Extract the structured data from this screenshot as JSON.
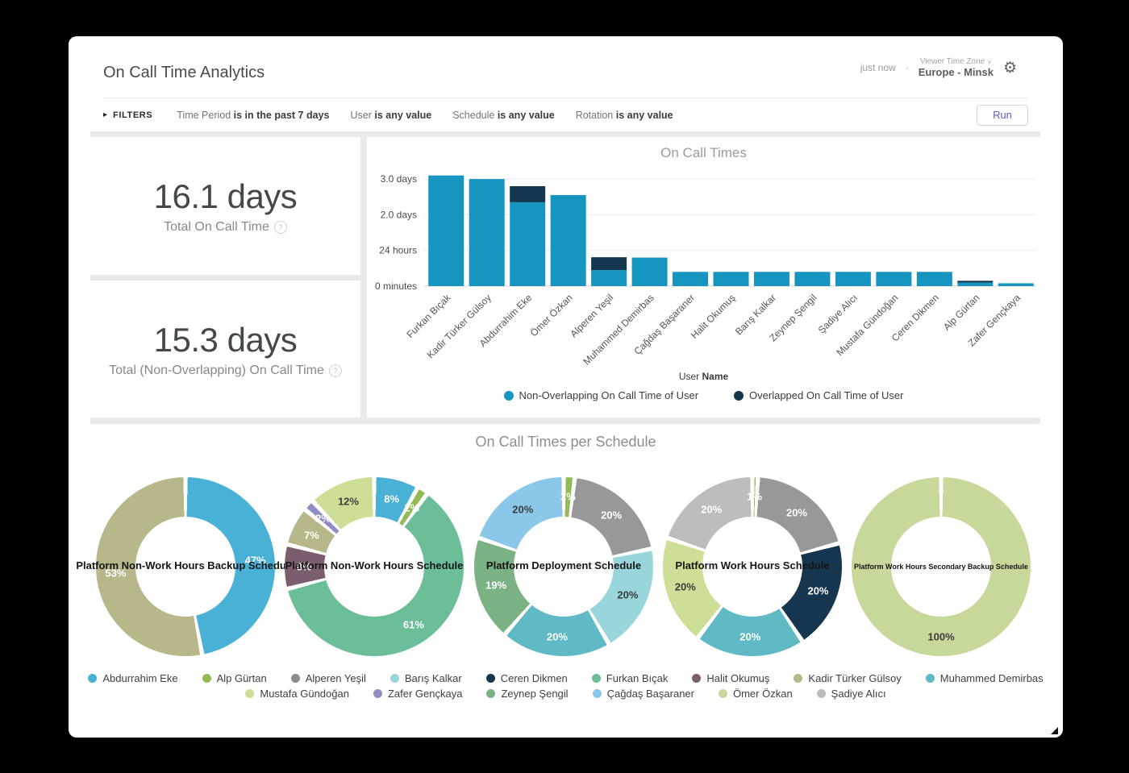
{
  "header": {
    "title": "On Call Time Analytics",
    "updated": "just now",
    "separator": "·",
    "timezone_label": "Viewer Time Zone",
    "timezone_value": "Europe - Minsk"
  },
  "filters": {
    "label": "FILTERS",
    "items": [
      {
        "field": "Time Period",
        "condition": "is in the past 7 days"
      },
      {
        "field": "User",
        "condition": "is any value"
      },
      {
        "field": "Schedule",
        "condition": "is any value"
      },
      {
        "field": "Rotation",
        "condition": "is any value"
      }
    ],
    "run_label": "Run"
  },
  "metrics": [
    {
      "value": "16.1 days",
      "label": "Total On Call Time"
    },
    {
      "value": "15.3 days",
      "label": "Total (Non-Overlapping) On Call Time"
    }
  ],
  "colors": {
    "bar_teal": "#1795C1",
    "bar_navy": "#14374F",
    "grid_line": "#ececec",
    "baseline": "#dcdcdc"
  },
  "chart_data": [
    {
      "type": "bar",
      "title": "On Call Times",
      "stacked": true,
      "unit": "days",
      "ylim": [
        0,
        3.3
      ],
      "xlabel": {
        "prefix": "User ",
        "bold": "Name"
      },
      "y_ticks": [
        {
          "value": 3,
          "label": "3.0 days"
        },
        {
          "value": 2,
          "label": "2.0 days"
        },
        {
          "value": 1,
          "label": "24 hours"
        },
        {
          "value": 0,
          "label": "0 minutes"
        }
      ],
      "categories": [
        "Furkan Bıçak",
        "Kadir Türker Gülsoy",
        "Abdurrahim Eke",
        "Ömer Özkan",
        "Alperen Yeşil",
        "Muhammed Demirbas",
        "Çağdaş Başaraner",
        "Halit Okumuş",
        "Barış Kalkar",
        "Zeynep Şengil",
        "Şadiye Alıcı",
        "Mustafa Gündoğan",
        "Ceren Dikmen",
        "Alp Gürtan",
        "Zafer Gençkaya"
      ],
      "series": [
        {
          "name": "Non-Overlapping On Call Time of User",
          "color": "#1795C1",
          "values": [
            3.1,
            3.0,
            2.35,
            2.55,
            0.45,
            0.8,
            0.4,
            0.4,
            0.4,
            0.4,
            0.4,
            0.4,
            0.4,
            0.1,
            0.08
          ]
        },
        {
          "name": "Overlapped On Call Time of User",
          "color": "#14374F",
          "values": [
            0,
            0,
            0.45,
            0,
            0.36,
            0,
            0,
            0,
            0,
            0,
            0,
            0,
            0,
            0.05,
            0
          ]
        }
      ]
    },
    {
      "type": "pie",
      "title": "On Call Times per Schedule",
      "donuts": [
        {
          "title": "Platform Non-Work Hours Backup Schedule",
          "title_size": "normal",
          "slices": [
            {
              "name": "Abdurrahim Eke",
              "value": 47,
              "label": "47%",
              "color": "#49B1D5",
              "label_color": "#ffffff"
            },
            {
              "name": "Kadir Türker Gülsoy",
              "value": 53,
              "label": "53%",
              "color": "#B7B78A",
              "label_color": "#ffffff"
            }
          ]
        },
        {
          "title": "Platform Non-Work Hours Schedule",
          "title_size": "normal",
          "slices": [
            {
              "name": "Abdurrahim Eke",
              "value": 8,
              "label": "8%",
              "color": "#49B1D5",
              "label_color": "#ffffff"
            },
            {
              "name": "Alp Gürtan",
              "value": 2,
              "label": "2%",
              "color": "#93BA55",
              "label_color": "#ffffff"
            },
            {
              "name": "Furkan Bıçak",
              "value": 61,
              "label": "61%",
              "color": "#6CBE99",
              "label_color": "#ffffff"
            },
            {
              "name": "Halit Okumuş",
              "value": 8,
              "label": "8%",
              "color": "#7A5E70",
              "label_color": "#ffffff"
            },
            {
              "name": "Kadir Türker Gülsoy",
              "value": 7,
              "label": "7%",
              "color": "#B7B78A",
              "label_color": "#ffffff"
            },
            {
              "name": "Zafer Gençkaya",
              "value": 2,
              "label": "2%",
              "color": "#8F8DC3",
              "label_color": "#ffffff"
            },
            {
              "name": "Mustafa Gündoğan",
              "value": 12,
              "label": "12%",
              "color": "#CDDF97",
              "label_color": "#3c3c3c"
            }
          ]
        },
        {
          "title": "Platform Deployment Schedule",
          "title_size": "normal",
          "slices": [
            {
              "name": "Alp Gürtan",
              "value": 2,
              "label": "2%",
              "color": "#93BA55",
              "label_color": "#ffffff"
            },
            {
              "name": "Alperen Yeşil",
              "value": 20,
              "label": "20%",
              "color": "#989898",
              "label_color": "#ffffff"
            },
            {
              "name": "Barış Kalkar",
              "value": 20,
              "label": "20%",
              "color": "#99D6DB",
              "label_color": "#3c3c3c"
            },
            {
              "name": "Muhammed Demirbas",
              "value": 20,
              "label": "20%",
              "color": "#60BAC5",
              "label_color": "#ffffff"
            },
            {
              "name": "Zeynep Şengil",
              "value": 19,
              "label": "19%",
              "color": "#7AB284",
              "label_color": "#ffffff"
            },
            {
              "name": "Çağdaş Başaraner",
              "value": 20,
              "label": "20%",
              "color": "#8BC7E8",
              "label_color": "#3c3c3c"
            }
          ]
        },
        {
          "title": "Platform Work Hours Schedule",
          "title_size": "normal",
          "slices": [
            {
              "name": "Alp Gürtan",
              "value": 1,
              "label": "1%",
              "color": "#93BA55",
              "label_color": "#ffffff"
            },
            {
              "name": "Alperen Yeşil",
              "value": 20,
              "label": "20%",
              "color": "#989898",
              "label_color": "#ffffff"
            },
            {
              "name": "Ceren Dikmen",
              "value": 20,
              "label": "20%",
              "color": "#16364F",
              "label_color": "#ffffff"
            },
            {
              "name": "Muhammed Demirbas",
              "value": 20,
              "label": "20%",
              "color": "#60BAC5",
              "label_color": "#ffffff"
            },
            {
              "name": "Mustafa Gündoğan",
              "value": 20,
              "label": "20%",
              "color": "#CDDF97",
              "label_color": "#3c3c3c"
            },
            {
              "name": "Şadiye Alıcı",
              "value": 20,
              "label": "20%",
              "color": "#BDBDBD",
              "label_color": "#ffffff"
            }
          ]
        },
        {
          "title": "Platform Work Hours Secondary Backup Schedule",
          "title_size": "small",
          "slices": [
            {
              "name": "Ömer Özkan",
              "value": 100,
              "label": "100%",
              "color": "#C6D99B",
              "label_color": "#3c3c3c"
            }
          ]
        }
      ]
    }
  ],
  "schedule_section": {
    "title": "On Call Times per Schedule",
    "legend_rows": [
      [
        {
          "name": "Abdurrahim Eke",
          "color": "#49B1D5"
        },
        {
          "name": "Alp Gürtan",
          "color": "#93BA55"
        },
        {
          "name": "Alperen Yeşil",
          "color": "#8C8C8C"
        },
        {
          "name": "Barış Kalkar",
          "color": "#99D6DB"
        },
        {
          "name": "Ceren Dikmen",
          "color": "#16364F"
        },
        {
          "name": "Furkan Bıçak",
          "color": "#6CBE99"
        },
        {
          "name": "Halit Okumuş",
          "color": "#7A5E70"
        },
        {
          "name": "Kadir Türker Gülsoy",
          "color": "#B7B78A"
        },
        {
          "name": "Muhammed Demirbas",
          "color": "#60BAC5"
        }
      ],
      [
        {
          "name": "Mustafa Gündoğan",
          "color": "#CDDF97"
        },
        {
          "name": "Zafer Gençkaya",
          "color": "#8F8DC3"
        },
        {
          "name": "Zeynep Şengil",
          "color": "#7AB284"
        },
        {
          "name": "Çağdaş Başaraner",
          "color": "#8BC7E8"
        },
        {
          "name": "Ömer Özkan",
          "color": "#C6D99B"
        },
        {
          "name": "Şadiye Alıcı",
          "color": "#BDBDBD"
        }
      ]
    ]
  }
}
